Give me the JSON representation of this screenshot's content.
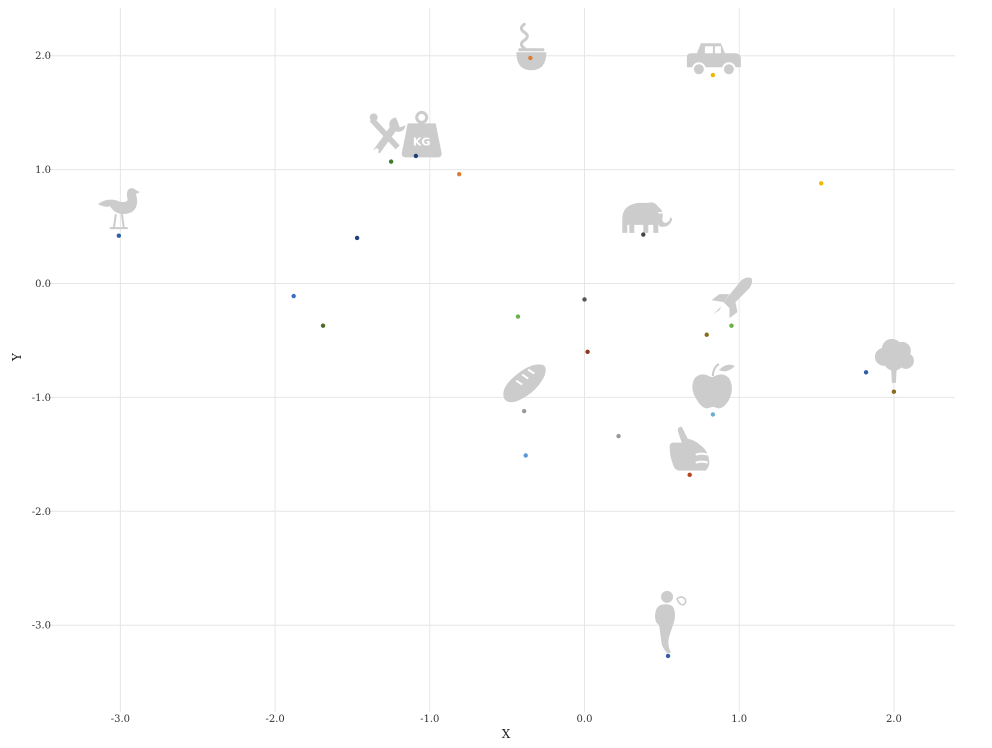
{
  "colors": {
    "icon": "#cccccc",
    "grid": "#e6e6e6",
    "background": "#ffffff"
  },
  "chart_data": {
    "type": "scatter",
    "title": "",
    "xlabel": "X",
    "ylabel": "Y",
    "xlim": [
      -3.45,
      2.4
    ],
    "ylim": [
      -3.75,
      2.4
    ],
    "grid": true,
    "legend": "none",
    "x_ticks": [
      -3.0,
      -2.0,
      -1.0,
      0.0,
      1.0,
      2.0
    ],
    "x_tick_labels": [
      "-3.0",
      "-2.0",
      "-1.0",
      "0.0",
      "1.0",
      "2.0"
    ],
    "y_ticks": [
      -3.0,
      -2.0,
      -1.0,
      0.0,
      1.0,
      2.0
    ],
    "y_tick_labels": [
      "-3.0",
      "-2.0",
      "-1.0",
      "0.0",
      "1.0",
      "2.0"
    ],
    "points": [
      {
        "x": -0.35,
        "y": 1.98,
        "color": "#e07b30"
      },
      {
        "x": 0.83,
        "y": 1.83,
        "color": "#f2b701"
      },
      {
        "x": -1.25,
        "y": 1.07,
        "color": "#3d7a2a"
      },
      {
        "x": -1.09,
        "y": 1.12,
        "color": "#1f3f7a"
      },
      {
        "x": -0.81,
        "y": 0.96,
        "color": "#e07b30"
      },
      {
        "x": 1.53,
        "y": 0.88,
        "color": "#f2b701"
      },
      {
        "x": -3.01,
        "y": 0.42,
        "color": "#2e5fa8"
      },
      {
        "x": -1.47,
        "y": 0.4,
        "color": "#1f3f7a"
      },
      {
        "x": 0.38,
        "y": 0.43,
        "color": "#444444"
      },
      {
        "x": -1.88,
        "y": -0.11,
        "color": "#3a6ec4"
      },
      {
        "x": -1.69,
        "y": -0.37,
        "color": "#4e6b2a"
      },
      {
        "x": -0.43,
        "y": -0.29,
        "color": "#6ab04c"
      },
      {
        "x": 0.0,
        "y": -0.14,
        "color": "#555555"
      },
      {
        "x": 0.02,
        "y": -0.6,
        "color": "#8b3a1f"
      },
      {
        "x": 0.79,
        "y": -0.45,
        "color": "#8a6a1f"
      },
      {
        "x": 0.95,
        "y": -0.37,
        "color": "#6ab04c"
      },
      {
        "x": 1.82,
        "y": -0.78,
        "color": "#2e5fa8"
      },
      {
        "x": 2.0,
        "y": -0.95,
        "color": "#8a6a1f"
      },
      {
        "x": -0.39,
        "y": -1.12,
        "color": "#999999"
      },
      {
        "x": 0.83,
        "y": -1.15,
        "color": "#6baed6"
      },
      {
        "x": 0.22,
        "y": -1.34,
        "color": "#999999"
      },
      {
        "x": -0.38,
        "y": -1.51,
        "color": "#5b9bd5"
      },
      {
        "x": 0.68,
        "y": -1.68,
        "color": "#b5441f"
      },
      {
        "x": 0.54,
        "y": -3.27,
        "color": "#2e5fa8"
      }
    ],
    "icons": [
      {
        "name": "bowl-icon",
        "x": -0.35,
        "y": 2.1
      },
      {
        "name": "car-icon",
        "x": 0.83,
        "y": 2.03
      },
      {
        "name": "tools-weight-icon",
        "x": -1.13,
        "y": 1.3
      },
      {
        "name": "elephant-icon",
        "x": 0.38,
        "y": 0.62
      },
      {
        "name": "chicken-icon",
        "x": -3.01,
        "y": 0.67
      },
      {
        "name": "rocket-icon",
        "x": 0.95,
        "y": -0.12
      },
      {
        "name": "tree-icon",
        "x": 2.0,
        "y": -0.67
      },
      {
        "name": "bread-icon",
        "x": -0.39,
        "y": -0.87
      },
      {
        "name": "apple-icon",
        "x": 0.83,
        "y": -0.9
      },
      {
        "name": "thumbs-up-icon",
        "x": 0.68,
        "y": -1.45
      },
      {
        "name": "person-icon",
        "x": 0.54,
        "y": -2.98
      }
    ]
  }
}
